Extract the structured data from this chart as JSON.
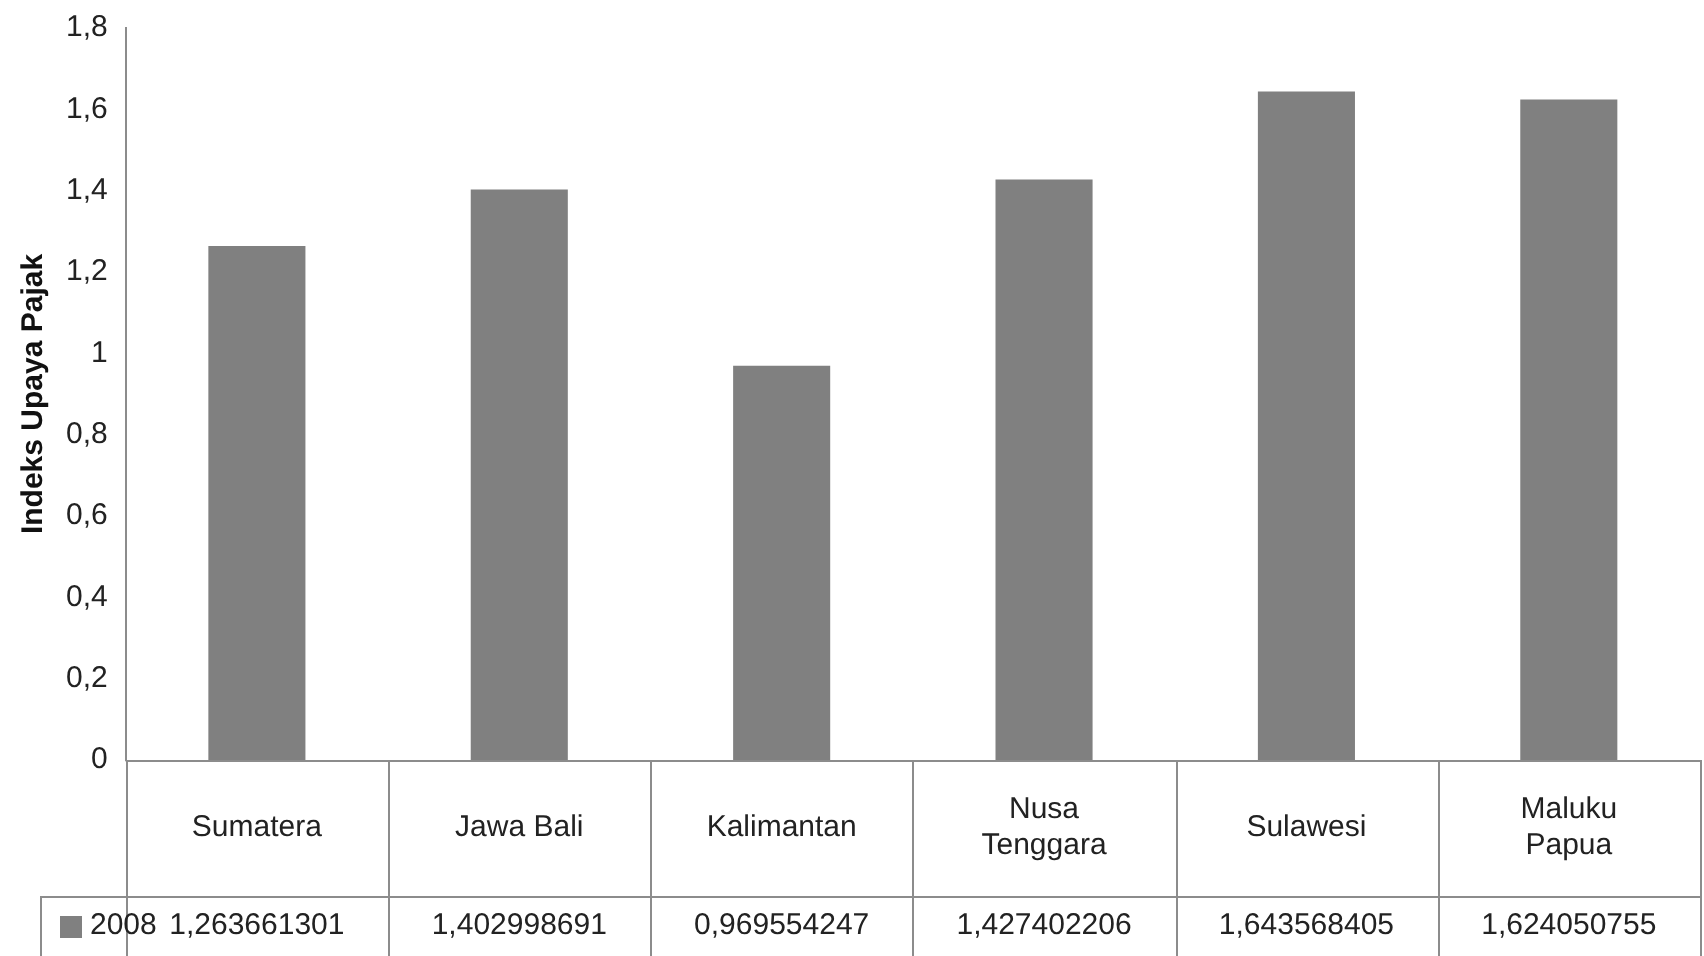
{
  "chart_data": {
    "type": "bar",
    "ylabel": "Indeks Upaya Pajak",
    "categories": [
      "Sumatera",
      "Jawa Bali",
      "Kalimantan",
      "Nusa Tenggara",
      "Sulawesi",
      "Maluku Papua"
    ],
    "series": [
      {
        "name": "2008",
        "color": "#808080",
        "values": [
          1.263661301,
          1.402998691,
          0.969554247,
          1.427402206,
          1.643568405,
          1.624050755
        ],
        "value_labels": [
          "1,263661301",
          "1,402998691",
          "0,969554247",
          "1,427402206",
          "1,643568405",
          "1,624050755"
        ]
      }
    ],
    "ylim": [
      0,
      1.8
    ],
    "yticks": [
      0,
      {
        "value": 0.2,
        "label": "0,2"
      },
      {
        "value": 0.4,
        "label": "0,4"
      },
      {
        "value": 0.6,
        "label": "0,6"
      },
      {
        "value": 0.8,
        "label": "0,8"
      },
      1,
      {
        "value": 1.2,
        "label": "1,2"
      },
      {
        "value": 1.4,
        "label": "1,4"
      },
      {
        "value": 1.6,
        "label": "1,6"
      },
      {
        "value": 1.8,
        "label": "1,8"
      }
    ],
    "grid": false,
    "legend": "bottom"
  }
}
